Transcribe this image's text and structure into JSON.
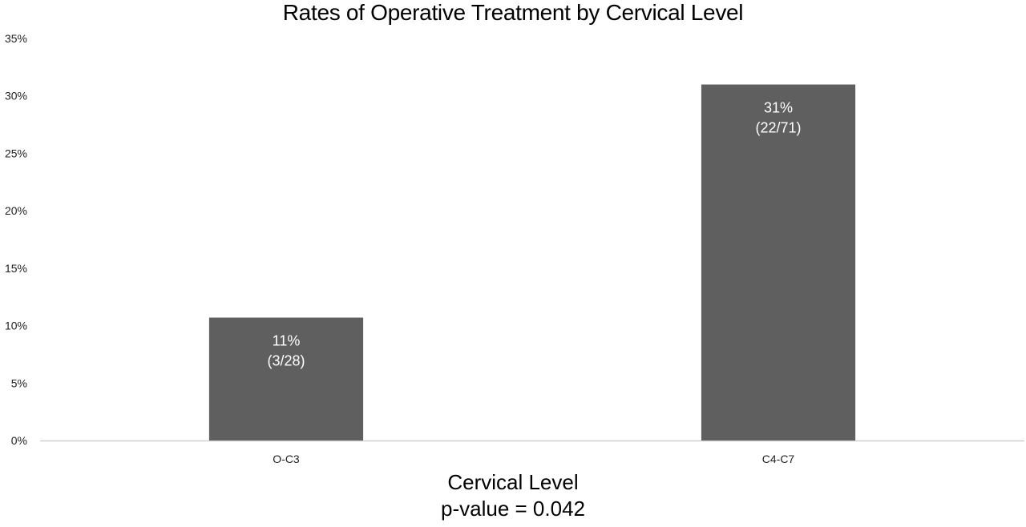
{
  "chart_data": {
    "type": "bar",
    "title": "Rates of Operative Treatment by Cervical Level",
    "xlabel": "Cervical Level",
    "subtitle": "p-value = 0.042",
    "ylabel": "",
    "categories": [
      "O-C3",
      "C4-C7"
    ],
    "values": [
      10.7,
      30.99
    ],
    "data_labels": [
      {
        "percent": "11%",
        "count": "(3/28)"
      },
      {
        "percent": "31%",
        "count": "(22/71)"
      }
    ],
    "ylim": [
      0,
      35
    ],
    "yticks": [
      0,
      5,
      10,
      15,
      20,
      25,
      30,
      35
    ],
    "ytick_labels": [
      "0%",
      "5%",
      "10%",
      "15%",
      "20%",
      "25%",
      "30%",
      "35%"
    ],
    "grid": false,
    "legend": "none",
    "bar_color": "#5f5f5f",
    "label_color": "#ffffff",
    "axis_color": "#d0d0d0"
  }
}
